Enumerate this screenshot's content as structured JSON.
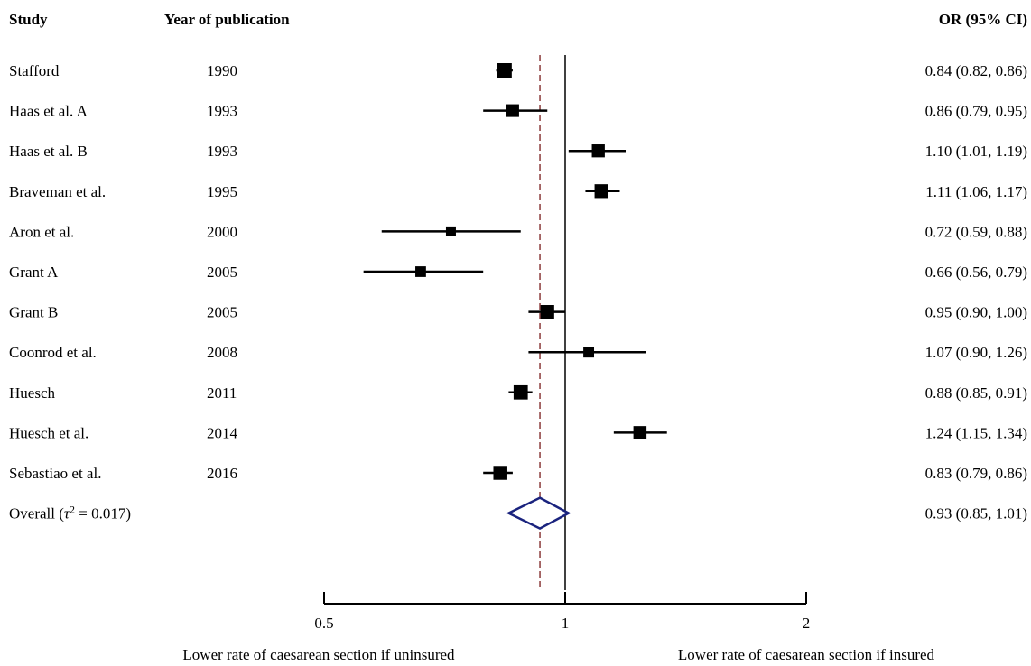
{
  "headers": {
    "study": "Study",
    "year": "Year of publication",
    "or": "OR (95% CI)"
  },
  "chart_data": {
    "type": "forest",
    "scale": "log",
    "xlim": [
      0.5,
      2
    ],
    "xticks": [
      {
        "value": 0.5,
        "label": "0.5"
      },
      {
        "value": 1,
        "label": "1"
      },
      {
        "value": 2,
        "label": "2"
      }
    ],
    "null_line": 1,
    "pooled_line": 0.93,
    "studies": [
      {
        "study": "Stafford",
        "year": "1990",
        "or": 0.84,
        "lo": 0.82,
        "hi": 0.86,
        "label": "0.84 (0.82, 0.86)"
      },
      {
        "study": "Haas et al. A",
        "year": "1993",
        "or": 0.86,
        "lo": 0.79,
        "hi": 0.95,
        "label": "0.86 (0.79, 0.95)"
      },
      {
        "study": "Haas et al. B",
        "year": "1993",
        "or": 1.1,
        "lo": 1.01,
        "hi": 1.19,
        "label": "1.10 (1.01, 1.19)"
      },
      {
        "study": "Braveman et al.",
        "year": "1995",
        "or": 1.11,
        "lo": 1.06,
        "hi": 1.17,
        "label": "1.11 (1.06, 1.17)"
      },
      {
        "study": "Aron et al.",
        "year": "2000",
        "or": 0.72,
        "lo": 0.59,
        "hi": 0.88,
        "label": "0.72 (0.59, 0.88)"
      },
      {
        "study": "Grant A",
        "year": "2005",
        "or": 0.66,
        "lo": 0.56,
        "hi": 0.79,
        "label": "0.66 (0.56, 0.79)"
      },
      {
        "study": "Grant B",
        "year": "2005",
        "or": 0.95,
        "lo": 0.9,
        "hi": 1.0,
        "label": "0.95 (0.90, 1.00)"
      },
      {
        "study": "Coonrod et al.",
        "year": "2008",
        "or": 1.07,
        "lo": 0.9,
        "hi": 1.26,
        "label": "1.07 (0.90, 1.26)"
      },
      {
        "study": "Huesch",
        "year": "2011",
        "or": 0.88,
        "lo": 0.85,
        "hi": 0.91,
        "label": "0.88 (0.85, 0.91)"
      },
      {
        "study": "Huesch et al.",
        "year": "2014",
        "or": 1.24,
        "lo": 1.15,
        "hi": 1.34,
        "label": "1.24 (1.15, 1.34)"
      },
      {
        "study": "Sebastiao et al.",
        "year": "2016",
        "or": 0.83,
        "lo": 0.79,
        "hi": 0.86,
        "label": "0.83 (0.79, 0.86)"
      }
    ],
    "overall": {
      "label_prefix": "Overall  (",
      "tau_symbol": "τ",
      "tau_exp": "2",
      "tau_value": " = 0.017)",
      "or": 0.93,
      "lo": 0.85,
      "hi": 1.01,
      "label": "0.93 (0.85, 1.01)"
    },
    "xlabel_left": "Lower rate of caesarean section if uninsured",
    "xlabel_right": "Lower rate of caesarean section if insured",
    "colors": {
      "marker": "#000000",
      "diamond": "#1a237e",
      "pooled_line": "#8b3a3a",
      "axis": "#000000"
    }
  }
}
